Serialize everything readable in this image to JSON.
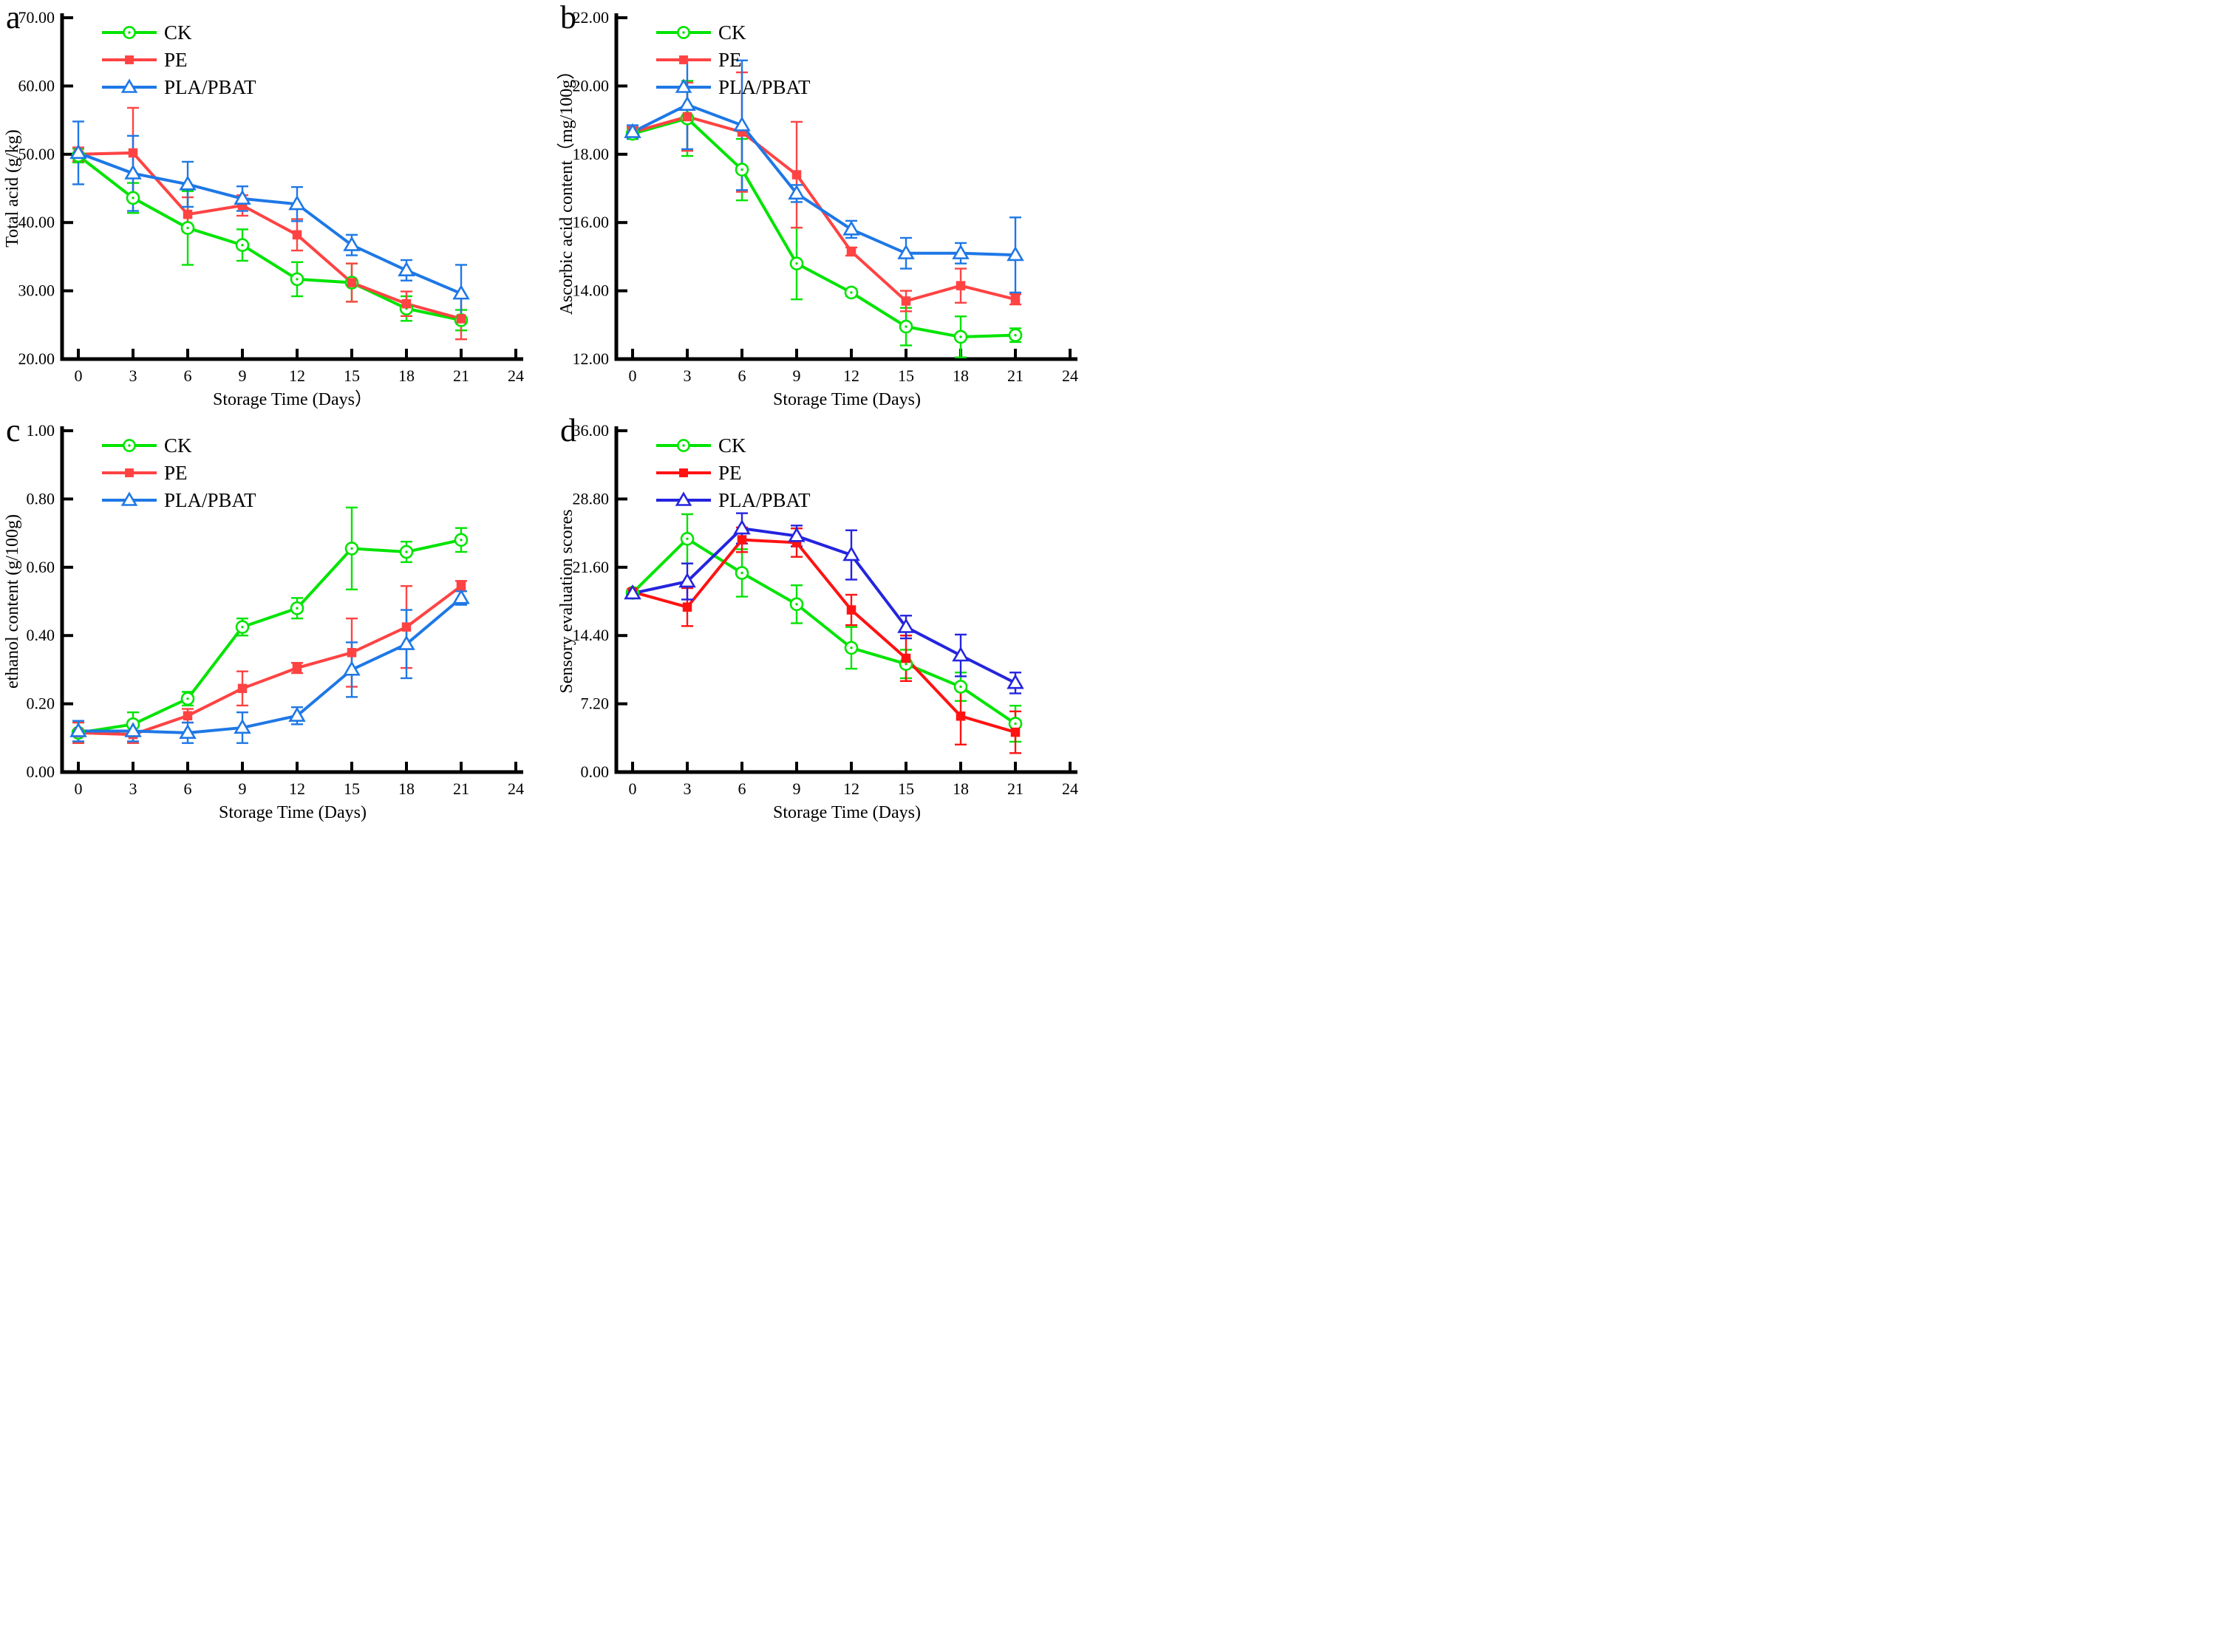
{
  "figure": {
    "background": "#ffffff",
    "columns": 2,
    "rows": 2
  },
  "chart_data": [
    {
      "id": "a",
      "type": "line",
      "panel_label": "a",
      "xlabel": "Storage Time (Days）",
      "ylabel": "Total acid (g/kg)",
      "x": [
        0,
        3,
        6,
        9,
        12,
        15,
        18,
        21
      ],
      "xticks": [
        0,
        3,
        6,
        9,
        12,
        15,
        18,
        21,
        24
      ],
      "xlim": [
        0,
        24
      ],
      "ylim": [
        20,
        70
      ],
      "yticks": [
        20,
        30,
        40,
        50,
        60,
        70
      ],
      "ytick_decimals": 2,
      "grid": false,
      "legend_position": "top-left",
      "series": [
        {
          "name": "CK",
          "color": "#00E400",
          "marker": "circle-open",
          "values": [
            49.8,
            43.6,
            39.2,
            36.7,
            31.7,
            31.2,
            27.4,
            25.7
          ],
          "errors": [
            1.0,
            2.2,
            5.4,
            2.3,
            2.5,
            2.8,
            1.8,
            1.5
          ]
        },
        {
          "name": "PE",
          "color": "#FF4343",
          "marker": "square-filled",
          "values": [
            50.0,
            50.2,
            41.2,
            42.5,
            38.2,
            31.2,
            28.1,
            25.9
          ],
          "errors": [
            1.0,
            6.6,
            2.5,
            1.5,
            2.3,
            2.8,
            1.8,
            3.0
          ]
        },
        {
          "name": "PLA/PBAT",
          "color": "#1E78E6",
          "marker": "triangle-open",
          "values": [
            50.2,
            47.2,
            45.6,
            43.5,
            42.7,
            36.7,
            33.0,
            29.6
          ],
          "errors": [
            4.6,
            5.5,
            3.3,
            1.8,
            2.5,
            1.5,
            1.5,
            4.2
          ]
        }
      ]
    },
    {
      "id": "b",
      "type": "line",
      "panel_label": "b",
      "xlabel": "Storage Time (Days)",
      "ylabel": "Ascorbic acid content（mg/100g）",
      "x": [
        0,
        3,
        6,
        9,
        12,
        15,
        18,
        21
      ],
      "xticks": [
        0,
        3,
        6,
        9,
        12,
        15,
        18,
        21,
        24
      ],
      "xlim": [
        0,
        24
      ],
      "ylim": [
        12,
        22
      ],
      "yticks": [
        12,
        14,
        16,
        18,
        20,
        22
      ],
      "ytick_decimals": 2,
      "grid": false,
      "legend_position": "top-left",
      "series": [
        {
          "name": "CK",
          "color": "#00E400",
          "marker": "circle-open",
          "values": [
            18.6,
            19.05,
            17.55,
            14.8,
            13.95,
            12.95,
            12.65,
            12.7
          ],
          "errors": [
            0.15,
            1.1,
            0.9,
            1.05,
            0.1,
            0.55,
            0.6,
            0.2
          ]
        },
        {
          "name": "PE",
          "color": "#FF4343",
          "marker": "square-filled",
          "values": [
            18.65,
            19.1,
            18.65,
            17.4,
            15.15,
            13.7,
            14.15,
            13.75
          ],
          "errors": [
            0.15,
            1.0,
            1.75,
            1.55,
            0.12,
            0.3,
            0.5,
            0.15
          ]
        },
        {
          "name": "PLA/PBAT",
          "color": "#1E78E6",
          "marker": "triangle-open",
          "values": [
            18.65,
            19.45,
            18.85,
            16.85,
            15.8,
            15.1,
            15.1,
            15.05
          ],
          "errors": [
            0.2,
            1.3,
            1.9,
            0.25,
            0.25,
            0.45,
            0.3,
            1.1
          ]
        }
      ]
    },
    {
      "id": "c",
      "type": "line",
      "panel_label": "c",
      "xlabel": "Storage Time (Days)",
      "ylabel": "ethanol content (g/100g)",
      "x": [
        0,
        3,
        6,
        9,
        12,
        15,
        18,
        21
      ],
      "xticks": [
        0,
        3,
        6,
        9,
        12,
        15,
        18,
        21,
        24
      ],
      "xlim": [
        0,
        24
      ],
      "ylim": [
        0,
        1
      ],
      "yticks": [
        0,
        0.2,
        0.4,
        0.6,
        0.8,
        1.0
      ],
      "ytick_decimals": 2,
      "grid": false,
      "legend_position": "top-left",
      "series": [
        {
          "name": "CK",
          "color": "#00E400",
          "marker": "circle-open",
          "values": [
            0.115,
            0.14,
            0.215,
            0.425,
            0.48,
            0.655,
            0.645,
            0.68
          ],
          "errors": [
            0.03,
            0.035,
            0.02,
            0.025,
            0.03,
            0.12,
            0.03,
            0.035
          ]
        },
        {
          "name": "PE",
          "color": "#FF4343",
          "marker": "square-filled",
          "values": [
            0.115,
            0.11,
            0.165,
            0.245,
            0.305,
            0.35,
            0.425,
            0.545
          ],
          "errors": [
            0.03,
            0.025,
            0.02,
            0.05,
            0.015,
            0.1,
            0.12,
            0.015
          ]
        },
        {
          "name": "PLA/PBAT",
          "color": "#1E78E6",
          "marker": "triangle-open",
          "values": [
            0.12,
            0.12,
            0.115,
            0.13,
            0.165,
            0.3,
            0.375,
            0.51
          ],
          "errors": [
            0.03,
            0.03,
            0.03,
            0.045,
            0.025,
            0.08,
            0.1,
            0.02
          ]
        }
      ]
    },
    {
      "id": "d",
      "type": "line",
      "panel_label": "d",
      "xlabel": "Storage Time (Days)",
      "ylabel": "Sensory evaluation scores",
      "x": [
        0,
        3,
        6,
        9,
        12,
        15,
        18,
        21
      ],
      "xticks": [
        0,
        3,
        6,
        9,
        12,
        15,
        18,
        21,
        24
      ],
      "xlim": [
        0,
        24
      ],
      "ylim": [
        0,
        36
      ],
      "yticks": [
        0,
        7.2,
        14.4,
        21.6,
        28.8,
        36
      ],
      "ytick_decimals": 2,
      "grid": false,
      "legend_position": "top-left",
      "series": [
        {
          "name": "CK",
          "color": "#00E400",
          "marker": "circle-open",
          "values": [
            18.9,
            24.6,
            21.0,
            17.7,
            13.1,
            11.4,
            9.0,
            5.1
          ],
          "errors": [
            0.3,
            2.6,
            2.5,
            2.0,
            2.2,
            1.5,
            1.5,
            1.9
          ]
        },
        {
          "name": "PE",
          "color": "#FF1212",
          "marker": "square-filled",
          "values": [
            19.0,
            17.4,
            24.5,
            24.2,
            17.1,
            12.0,
            5.9,
            4.2
          ],
          "errors": [
            0.3,
            2.0,
            1.3,
            1.5,
            1.6,
            2.4,
            3.0,
            2.2
          ]
        },
        {
          "name": "PLA/PBAT",
          "color": "#2424DF",
          "marker": "triangle-open",
          "values": [
            18.85,
            20.1,
            25.7,
            24.9,
            22.9,
            15.3,
            12.3,
            9.4
          ],
          "errors": [
            0.3,
            1.9,
            1.6,
            1.1,
            2.6,
            1.2,
            2.2,
            1.1
          ]
        }
      ]
    }
  ]
}
